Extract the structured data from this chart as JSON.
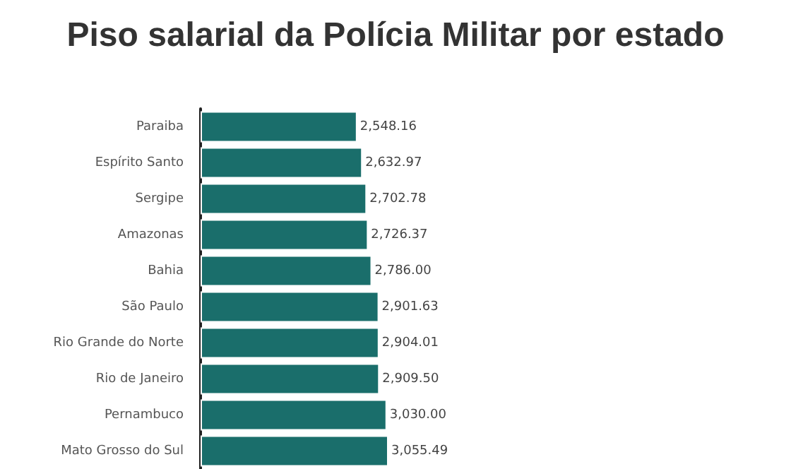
{
  "chart_data": {
    "type": "bar",
    "orientation": "horizontal",
    "title": "Piso salarial da Polícia Militar por estado",
    "categories": [
      "Paraiba",
      "Espírito Santo",
      "Sergipe",
      "Amazonas",
      "Bahia",
      "São Paulo",
      "Rio Grande do Norte",
      "Rio de Janeiro",
      "Pernambuco",
      "Mato Grosso do Sul"
    ],
    "values": [
      2548.16,
      2632.97,
      2702.78,
      2726.37,
      2786.0,
      2901.63,
      2904.01,
      2909.5,
      3030.0,
      3055.49
    ],
    "value_labels": [
      "2,548.16",
      "2,632.97",
      "2,702.78",
      "2,726.37",
      "2,786.00",
      "2,901.63",
      "2,904.01",
      "2,909.50",
      "3,030.00",
      "3,055.49"
    ],
    "color": "#1a6e6b"
  }
}
